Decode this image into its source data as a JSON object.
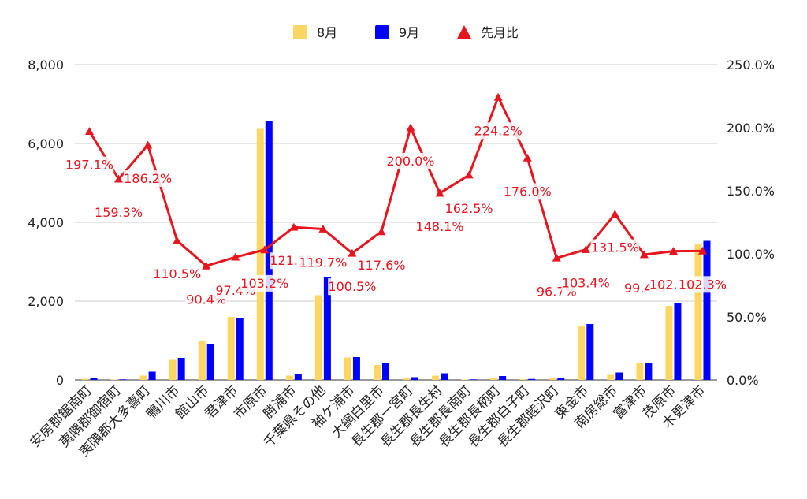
{
  "chart_data": {
    "type": "bar",
    "legend_position": "top",
    "categories": [
      "安房郡鋸南町",
      "夷隅郡御宿町",
      "夷隅郡大多喜町",
      "鴨川市",
      "館山市",
      "君津市",
      "市原市",
      "勝浦市",
      "千葉県その他",
      "袖ケ浦市",
      "大網白里市",
      "長生郡一宮町",
      "長生郡長生村",
      "長生郡長南町",
      "長生郡長柄町",
      "長生郡白子町",
      "長生郡睦沢町",
      "東金市",
      "南房総市",
      "富津市",
      "茂原市",
      "木更津市"
    ],
    "series": [
      {
        "name": "8月",
        "type": "bar",
        "axis": "left",
        "color": "#fdd663",
        "values": [
          30,
          10,
          110,
          510,
          1000,
          1600,
          6370,
          110,
          2150,
          570,
          380,
          50,
          110,
          10,
          40,
          20,
          50,
          1380,
          130,
          440,
          1880,
          3450
        ]
      },
      {
        "name": "9月",
        "type": "bar",
        "axis": "left",
        "color": "#0000ff",
        "values": [
          50,
          15,
          210,
          560,
          900,
          1560,
          6570,
          140,
          2600,
          580,
          440,
          70,
          170,
          15,
          100,
          25,
          50,
          1420,
          190,
          440,
          1960,
          3530
        ]
      },
      {
        "name": "先月比",
        "type": "line",
        "axis": "right",
        "color": "#e8141e",
        "values": [
          197.1,
          159.3,
          186.2,
          110.5,
          90.4,
          97.4,
          103.2,
          121.1,
          119.7,
          100.5,
          117.6,
          200.0,
          148.1,
          162.5,
          224.2,
          176.0,
          96.7,
          103.4,
          131.5,
          99.4,
          102.1,
          102.3
        ],
        "labels": [
          "197.1%",
          "159.3%",
          "186.2%",
          "110.5%",
          "90.4%",
          "97.4%",
          "103.2%",
          "121.1%",
          "119.7%",
          "100.5%",
          "117.6%",
          "200.0%",
          "148.1%",
          "162.5%",
          "224.2%",
          "176.0%",
          "96.7%",
          "103.4%",
          "131.5%",
          "99.4%",
          "102.1%",
          "102.3%"
        ]
      }
    ],
    "y_left": {
      "min": 0,
      "max": 8000,
      "ticks": [
        "0",
        "2,000",
        "4,000",
        "6,000",
        "8,000"
      ]
    },
    "y_right": {
      "min": 0,
      "max": 250,
      "ticks": [
        "0.0%",
        "50.0%",
        "100.0%",
        "150.0%",
        "200.0%",
        "250.0%"
      ]
    },
    "grid": true
  }
}
